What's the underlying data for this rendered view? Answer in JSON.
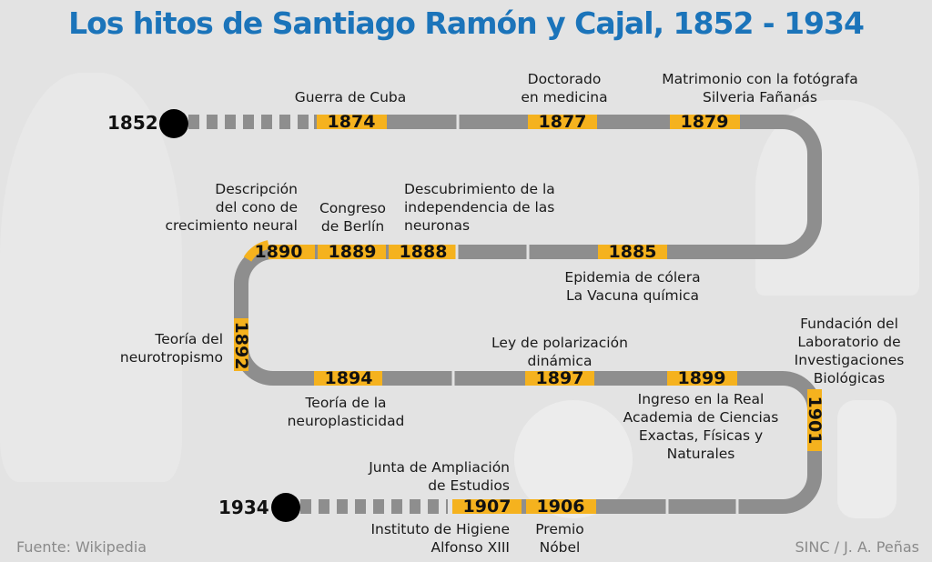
{
  "title": "Los hitos de Santiago Ramón y Cajal, 1852 - 1934",
  "colors": {
    "title": "#1b74ba",
    "track": "#8e8e8e",
    "highlight": "#f5b21e",
    "background": "#e3e3e3"
  },
  "start": {
    "year": "1852"
  },
  "end": {
    "year": "1934"
  },
  "milestones": [
    {
      "year": "1874",
      "label": "Guerra de Cuba"
    },
    {
      "year": "1877",
      "label": "Doctorado\nen medicina"
    },
    {
      "year": "1879",
      "label": "Matrimonio con la fotógrafa\nSilveria Fañanás"
    },
    {
      "year": "1885",
      "label": "Epidemia de cólera\nLa Vacuna química"
    },
    {
      "year": "1888",
      "label": "Descubrimiento de la\nindependencia de las\nneuronas"
    },
    {
      "year": "1889",
      "label": "Congreso\nde Berlín"
    },
    {
      "year": "1890",
      "label": "Descripción\ndel cono de\ncrecimiento neural"
    },
    {
      "year": "1892",
      "label": "Teoría del\nneurotropismo"
    },
    {
      "year": "1894",
      "label": "Teoría de la\nneuroplasticidad"
    },
    {
      "year": "1897",
      "label": "Ley de polarización\ndinámica"
    },
    {
      "year": "1899",
      "label": "Ingreso en la Real\nAcademia de Ciencias\nExactas, Físicas y\nNaturales"
    },
    {
      "year": "1901",
      "label": "Fundación del\nLaboratorio de\nInvestigaciones\nBiológicas"
    },
    {
      "year": "1906",
      "label": "Premio\nNóbel"
    },
    {
      "year": "1907",
      "label": "Junta de Ampliación\nde Estudios",
      "label2": "Instituto de Higiene\nAlfonso XIII"
    }
  ],
  "footer": {
    "source": "Fuente: Wikipedia",
    "credit": "SINC / J. A. Peñas"
  }
}
